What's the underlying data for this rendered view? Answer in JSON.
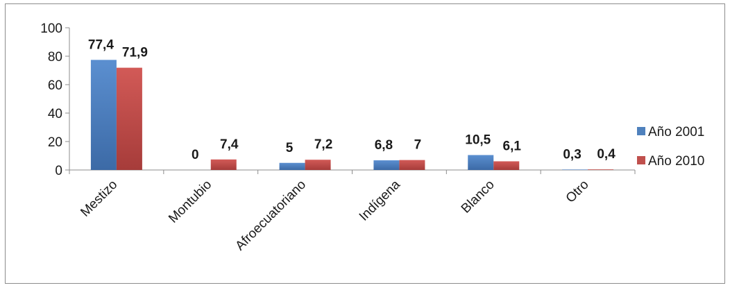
{
  "chart_data": {
    "type": "bar",
    "categories": [
      "Mestizo",
      "Montubio",
      "Afroecuatoriano",
      "Indígena",
      "Blanco",
      "Otro"
    ],
    "series": [
      {
        "name": "Año 2001",
        "values": [
          77.4,
          0,
          5,
          6.8,
          10.5,
          0.3
        ],
        "labels": [
          "77,4",
          "0",
          "5",
          "6,8",
          "10,5",
          "0,3"
        ],
        "color": "#4F81BD"
      },
      {
        "name": "Año 2010",
        "values": [
          71.9,
          7.4,
          7.2,
          7,
          6.1,
          0.4
        ],
        "labels": [
          "71,9",
          "7,4",
          "7,2",
          "7",
          "6,1",
          "0,4"
        ],
        "color": "#C0504D"
      }
    ],
    "yticks": [
      "0",
      "20",
      "40",
      "60",
      "80",
      "100"
    ],
    "ylim": [
      0,
      100
    ],
    "grid": false,
    "legend_position": "right"
  }
}
